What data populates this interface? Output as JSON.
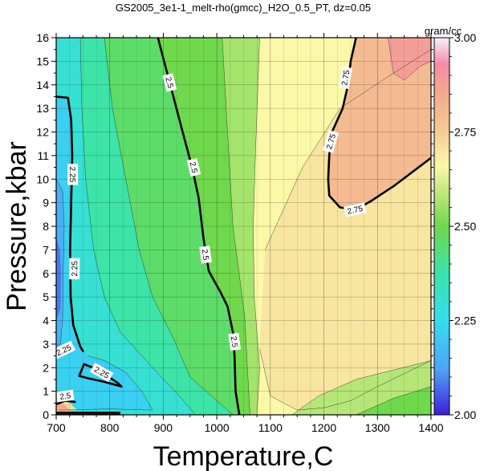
{
  "chart_data": {
    "type": "heatmap",
    "title": "GS2005_3e1-1_melt-rho(gmcc)_H2O_0.5_PT, dz=0.05",
    "xlabel": "Temperature,C",
    "ylabel": "Pressure,kbar",
    "xlim": [
      700,
      1400
    ],
    "ylim": [
      0,
      16
    ],
    "x_ticks": [
      700,
      800,
      900,
      1000,
      1100,
      1200,
      1300,
      1400
    ],
    "y_ticks": [
      0,
      1,
      2,
      3,
      4,
      5,
      6,
      7,
      8,
      9,
      10,
      11,
      12,
      13,
      14,
      15,
      16
    ],
    "grid": true,
    "colorbar": {
      "label": "gram/cc",
      "range": [
        2.0,
        3.0
      ],
      "ticks": [
        2.0,
        2.25,
        2.5,
        2.75,
        3.0
      ],
      "tick_labels": [
        "2.00",
        "2.25",
        "2.50",
        "2.75",
        "3.00"
      ],
      "placement": "right",
      "stops": [
        {
          "v": 2.0,
          "color": "#3d1fd9"
        },
        {
          "v": 2.12,
          "color": "#4fa3f7"
        },
        {
          "v": 2.25,
          "color": "#35dcef"
        },
        {
          "v": 2.38,
          "color": "#3de3a7"
        },
        {
          "v": 2.5,
          "color": "#6fd84c"
        },
        {
          "v": 2.6,
          "color": "#c8ea82"
        },
        {
          "v": 2.66,
          "color": "#fbf9a8"
        },
        {
          "v": 2.75,
          "color": "#f4cc95"
        },
        {
          "v": 2.85,
          "color": "#f4aa8e"
        },
        {
          "v": 2.93,
          "color": "#f58ba8"
        },
        {
          "v": 3.0,
          "color": "#f5f0f8"
        }
      ]
    },
    "contour_interval": 0.05,
    "labeled_contours": [
      {
        "level": 2.25,
        "label": "2.25",
        "segments": [
          {
            "points": [
              [
                700,
                13.5
              ],
              [
                722,
                13.45
              ],
              [
                728,
                12.5
              ],
              [
                730,
                11
              ],
              [
                728,
                9
              ],
              [
                726,
                7
              ],
              [
                727,
                5
              ],
              [
                732,
                3.8
              ],
              [
                745,
                2.9
              ],
              [
                750,
                2.7
              ]
            ],
            "labels": [
              [
                731,
                10.2
              ],
              [
                734,
                6.2
              ]
            ]
          },
          {
            "points": [
              [
                700,
                2.7
              ],
              [
                713,
                2.8
              ],
              [
                728,
                3.0
              ]
            ],
            "labels": [
              [
                714,
                2.75
              ]
            ]
          },
          {
            "points": [
              [
                743,
                1.65
              ],
              [
                752,
                2.15
              ],
              [
                780,
                1.9
              ],
              [
                815,
                1.35
              ],
              [
                822,
                1.2
              ],
              [
                790,
                1.4
              ],
              [
                760,
                1.55
              ],
              [
                743,
                1.65
              ]
            ],
            "labels": [
              [
                785,
                1.8
              ]
            ]
          }
        ]
      },
      {
        "level": 2.5,
        "label": "2.5",
        "segments": [
          {
            "points": [
              [
                890,
                16
              ],
              [
                898,
                15.3
              ],
              [
                912,
                14.1
              ],
              [
                935,
                12.1
              ],
              [
                955,
                10.4
              ],
              [
                966,
                9.2
              ],
              [
                975,
                7.5
              ],
              [
                985,
                6.1
              ],
              [
                1007,
                5.2
              ],
              [
                1020,
                4.6
              ],
              [
                1030,
                3.5
              ],
              [
                1033,
                2.5
              ],
              [
                1035,
                1.0
              ],
              [
                1042,
                0.0
              ]
            ],
            "labels": [
              [
                912,
                14.1
              ],
              [
                957,
                10.5
              ],
              [
                979,
                6.8
              ],
              [
                1033,
                3.1
              ]
            ]
          },
          {
            "points": [
              [
                700,
                0.45
              ],
              [
                717,
                0.6
              ],
              [
                735,
                0.55
              ]
            ],
            "labels": [
              [
                717,
                0.8
              ]
            ]
          }
        ]
      },
      {
        "level": 2.75,
        "label": "2.75",
        "segments": [
          {
            "points": [
              [
                1260,
                16
              ],
              [
                1250,
                15.0
              ],
              [
                1245,
                14.0
              ],
              [
                1235,
                13.0
              ],
              [
                1215,
                12.0
              ],
              [
                1210,
                11.0
              ],
              [
                1208,
                10.0
              ],
              [
                1210,
                9.3
              ],
              [
                1230,
                8.8
              ],
              [
                1260,
                8.7
              ],
              [
                1290,
                9.1
              ],
              [
                1330,
                9.7
              ],
              [
                1400,
                10.9
              ]
            ],
            "labels": [
              [
                1240,
                14.3
              ],
              [
                1213,
                11.6
              ],
              [
                1258,
                8.7
              ]
            ]
          }
        ]
      }
    ]
  }
}
